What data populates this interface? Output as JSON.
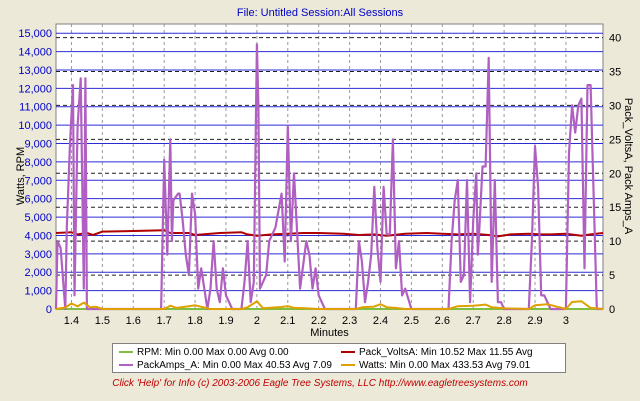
{
  "header": {
    "title": "File: Untitled   Session:All Sessions"
  },
  "chart_data": {
    "type": "line",
    "title": "File: Untitled   Session:All Sessions",
    "xlabel": "Minutes",
    "ylabel": "Watts, RPM",
    "y2label": "Pack_VoltsA, Pack Amps_A",
    "xlim": [
      1.35,
      3.12
    ],
    "ylim": [
      0,
      15500
    ],
    "y2lim": [
      0,
      42
    ],
    "xticks": [
      "1.4",
      "1.5",
      "1.6",
      "1.7",
      "1.8",
      "1.9",
      "2",
      "2.1",
      "2.2",
      "2.3",
      "2.4",
      "2.5",
      "2.6",
      "2.7",
      "2.8",
      "2.9",
      "3"
    ],
    "yticks": [
      "0",
      "1,000",
      "2,000",
      "3,000",
      "4,000",
      "5,000",
      "6,000",
      "7,000",
      "8,000",
      "9,000",
      "10,000",
      "11,000",
      "12,000",
      "13,000",
      "14,000",
      "15,000"
    ],
    "y2ticks": [
      "0",
      "5",
      "10",
      "15",
      "20",
      "25",
      "30",
      "35",
      "40"
    ],
    "series": [
      {
        "name": "RPM",
        "axis": "left",
        "color": "#7fbf3f",
        "x": [
          1.35,
          3.12
        ],
        "values": [
          0,
          0
        ]
      },
      {
        "name": "Pack_VoltsA",
        "axis": "right",
        "color": "#b00000",
        "x": [
          1.35,
          1.4,
          1.42,
          1.45,
          1.47,
          1.5,
          1.6,
          1.7,
          1.72,
          1.78,
          1.8,
          1.88,
          1.95,
          1.97,
          2.0,
          2.05,
          2.1,
          2.15,
          2.2,
          2.28,
          2.33,
          2.38,
          2.42,
          2.48,
          2.55,
          2.6,
          2.65,
          2.7,
          2.75,
          2.78,
          2.82,
          2.88,
          2.92,
          2.95,
          3.0,
          3.05,
          3.08,
          3.12
        ],
        "values": [
          11.2,
          11.3,
          11.0,
          11.2,
          10.9,
          11.4,
          11.5,
          11.6,
          11.2,
          11.2,
          10.9,
          11.2,
          11.3,
          11.0,
          10.8,
          11.0,
          11.1,
          11.2,
          11.2,
          11.1,
          10.9,
          11.0,
          10.8,
          11.1,
          11.2,
          11.1,
          11.0,
          11.1,
          10.9,
          10.7,
          11.0,
          11.1,
          11.0,
          11.0,
          11.1,
          10.8,
          11.0,
          11.2
        ]
      },
      {
        "name": "PackAmps_A",
        "axis": "right",
        "color": "#b060c0",
        "x": [
          1.35,
          1.355,
          1.365,
          1.38,
          1.385,
          1.395,
          1.405,
          1.41,
          1.42,
          1.43,
          1.44,
          1.445,
          1.45,
          1.46,
          1.47,
          1.48,
          1.5,
          1.69,
          1.7,
          1.71,
          1.72,
          1.725,
          1.73,
          1.745,
          1.75,
          1.76,
          1.77,
          1.78,
          1.79,
          1.8,
          1.81,
          1.82,
          1.83,
          1.84,
          1.85,
          1.86,
          1.87,
          1.88,
          1.89,
          1.9,
          1.92,
          1.95,
          1.96,
          1.97,
          1.98,
          1.99,
          2.0,
          2.005,
          2.01,
          2.03,
          2.04,
          2.05,
          2.06,
          2.08,
          2.09,
          2.1,
          2.11,
          2.12,
          2.14,
          2.16,
          2.17,
          2.18,
          2.19,
          2.2,
          2.22,
          2.32,
          2.33,
          2.34,
          2.35,
          2.36,
          2.37,
          2.38,
          2.39,
          2.4,
          2.41,
          2.42,
          2.43,
          2.44,
          2.45,
          2.46,
          2.47,
          2.48,
          2.5,
          2.62,
          2.63,
          2.64,
          2.65,
          2.66,
          2.67,
          2.68,
          2.69,
          2.7,
          2.71,
          2.715,
          2.72,
          2.73,
          2.74,
          2.75,
          2.76,
          2.77,
          2.78,
          2.79,
          2.8,
          2.85,
          2.88,
          2.89,
          2.9,
          2.91,
          2.92,
          2.93,
          2.95,
          3.0,
          3.01,
          3.02,
          3.03,
          3.04,
          3.05,
          3.06,
          3.07,
          3.08,
          3.1,
          3.12
        ],
        "values": [
          0,
          10,
          9,
          0,
          12,
          24,
          33,
          2,
          27,
          34,
          3,
          34,
          0,
          0,
          0,
          0,
          0,
          0,
          22,
          8,
          25,
          10,
          16,
          17,
          17,
          13,
          8,
          5,
          17,
          14,
          3,
          6,
          3,
          0,
          3,
          10,
          3,
          1,
          6,
          2,
          0,
          0,
          4,
          10,
          1,
          4,
          39,
          30,
          3,
          5,
          10,
          11,
          12,
          17,
          7,
          27,
          10,
          20,
          3,
          10,
          8,
          3,
          6,
          2,
          0,
          0,
          10,
          7,
          1,
          4,
          8,
          18,
          9,
          4,
          18,
          11,
          11,
          25,
          6,
          10,
          2,
          3,
          0,
          0,
          10,
          16,
          19,
          4,
          5,
          19,
          1,
          13,
          20,
          8,
          12,
          21,
          21,
          37,
          4,
          19,
          1,
          1,
          0,
          0,
          0,
          10,
          24,
          18,
          2,
          2,
          0,
          0,
          23,
          30,
          26,
          30,
          31,
          6,
          33,
          33,
          0,
          0
        ]
      },
      {
        "name": "Watts",
        "axis": "left",
        "color": "#e0a000",
        "x": [
          1.35,
          1.38,
          1.4,
          1.42,
          1.44,
          1.46,
          1.48,
          1.5,
          1.7,
          1.72,
          1.74,
          1.78,
          1.8,
          1.85,
          1.95,
          1.97,
          2.0,
          2.02,
          2.08,
          2.1,
          2.12,
          2.15,
          2.2,
          2.32,
          2.34,
          2.38,
          2.4,
          2.42,
          2.45,
          2.48,
          2.62,
          2.65,
          2.7,
          2.74,
          2.76,
          2.8,
          2.88,
          2.9,
          2.94,
          3.0,
          3.02,
          3.05,
          3.08,
          3.12
        ],
        "values": [
          0,
          80,
          300,
          140,
          350,
          90,
          120,
          0,
          0,
          180,
          60,
          150,
          200,
          0,
          0,
          90,
          420,
          40,
          110,
          160,
          60,
          50,
          0,
          0,
          90,
          130,
          260,
          100,
          60,
          0,
          0,
          150,
          180,
          240,
          90,
          40,
          0,
          200,
          260,
          0,
          380,
          420,
          60,
          0
        ]
      }
    ],
    "legend": [
      {
        "name": "RPM",
        "text": "RPM:  Min 0.00 Max 0.00  Avg 0.00"
      },
      {
        "name": "Pack_VoltsA",
        "text": "Pack_VoltsA:  Min 10.52 Max 11.55 Avg"
      },
      {
        "name": "PackAmps_A",
        "text": "PackAmps_A:  Min 0.00 Max 40.53 Avg 7.09"
      },
      {
        "name": "Watts",
        "text": "Watts:  Min 0.00 Max 433.53 Avg 79.01"
      }
    ]
  },
  "footer": {
    "text": "Click 'Help' for Info  (c) 2003-2006 Eagle Tree Systems, LLC     http://www.eagletreesystems.com"
  }
}
